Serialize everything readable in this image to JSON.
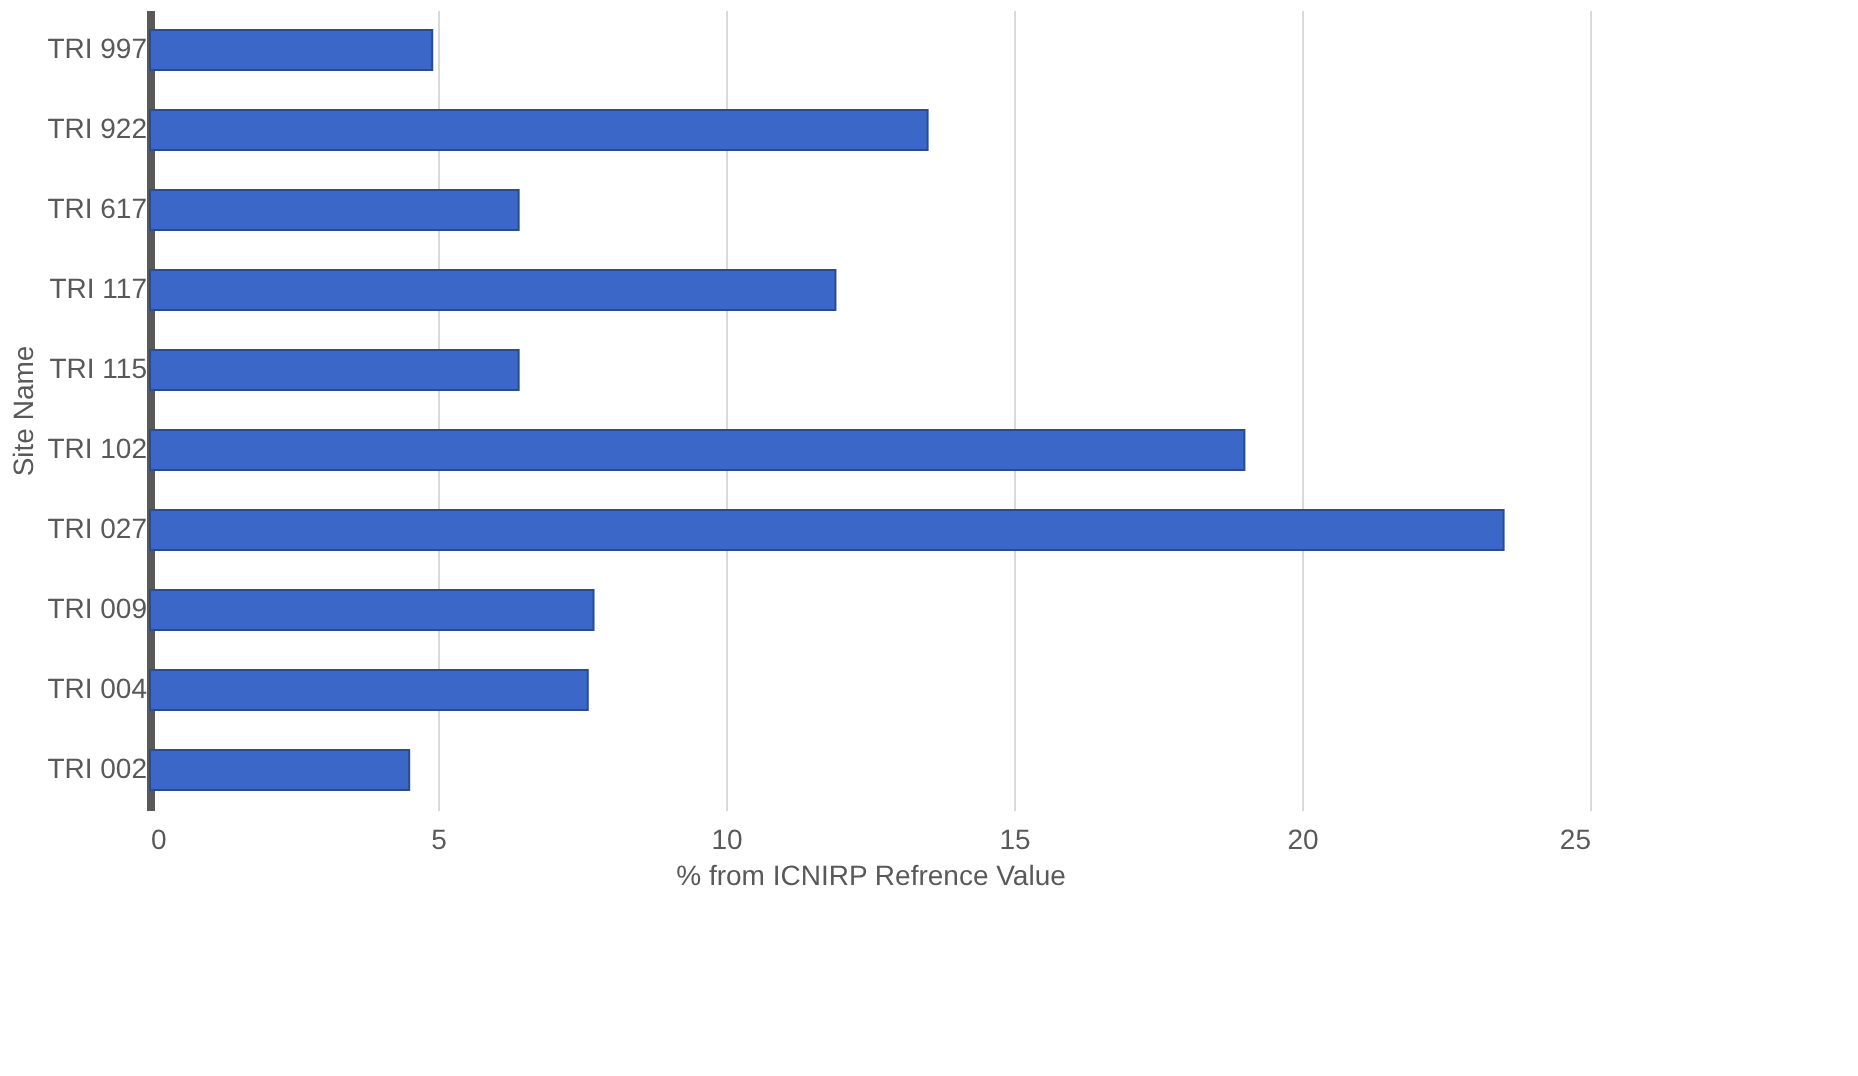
{
  "chart_data": {
    "type": "bar",
    "orientation": "horizontal",
    "xlabel": "%  from ICNIRP Refrence Value",
    "ylabel": "Site Name",
    "categories": [
      "TRI 997",
      "TRI 922",
      "TRI 617",
      "TRI 117",
      "TRI 115",
      "TRI 102",
      "TRI 027",
      "TRI 009",
      "TRI 004",
      "TRI 002"
    ],
    "values": [
      4.9,
      13.5,
      6.4,
      11.9,
      6.4,
      19.0,
      23.5,
      7.7,
      7.6,
      4.5
    ],
    "color": "#3b68c8",
    "xlim": [
      0,
      25
    ],
    "xticks": [
      0,
      5,
      10,
      15,
      20,
      25
    ],
    "grid": "x"
  }
}
